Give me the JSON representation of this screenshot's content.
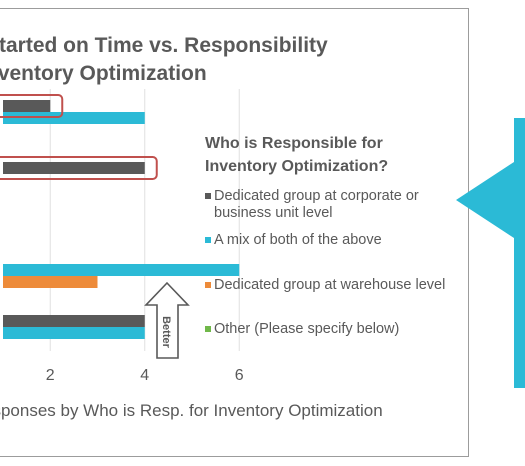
{
  "chart_data": {
    "type": "bar",
    "orientation": "horizontal",
    "title_lines": [
      "Started on Time vs. Responsibility",
      "nventory Optimization"
    ],
    "xlabel": "esponses by Who is Resp. for Inventory Optimization",
    "xlim": [
      1.0,
      6.2
    ],
    "x_ticks": [
      2,
      4,
      6
    ],
    "grid": true,
    "legend_title": "Who is Responsible for Inventory Optimization?",
    "legend_position": "right",
    "series": [
      {
        "name": "Dedicated group at corporate or business unit level",
        "color": "#595959",
        "values": [
          2,
          4,
          0,
          4
        ]
      },
      {
        "name": "A mix of both of the above",
        "color": "#2bbad6",
        "values": [
          4,
          0,
          6,
          4
        ]
      },
      {
        "name": "Dedicated group at warehouse level",
        "color": "#ed8b3a",
        "values": [
          0,
          0,
          3,
          0
        ]
      },
      {
        "name": "Other (Please specify below)",
        "color": "#70b84a",
        "values": [
          0,
          0,
          0,
          0
        ]
      }
    ],
    "highlighted": [
      {
        "group": 0,
        "series": 0
      },
      {
        "group": 1,
        "series": 0
      }
    ]
  },
  "annotations": {
    "better_label": "Better"
  },
  "colors": {
    "highlight_box": "#c0504d",
    "callout": "#2bbad6",
    "arrow_stroke": "#595959"
  }
}
